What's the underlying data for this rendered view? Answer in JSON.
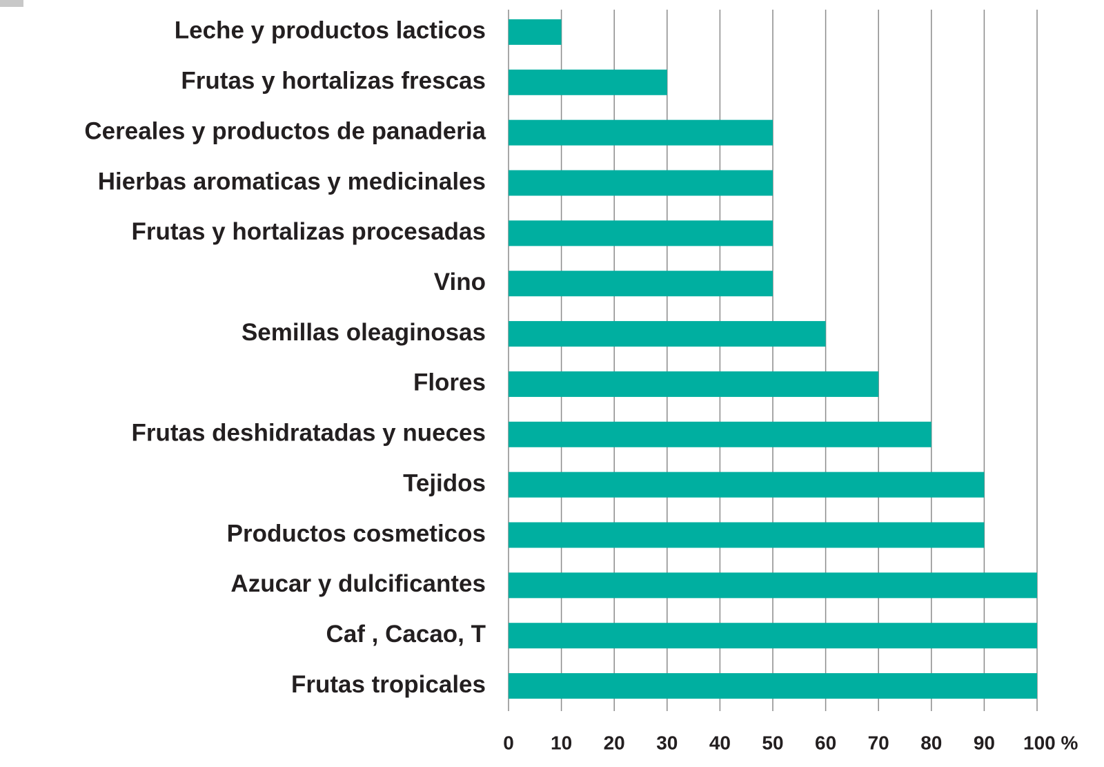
{
  "chart_data": {
    "type": "hbar",
    "categories": [
      "Leche y productos lacticos",
      "Frutas y hortalizas frescas",
      "Cereales y productos de panaderia",
      "Hierbas aromaticas y medicinales",
      "Frutas y hortalizas procesadas",
      "Vino",
      "Semillas oleaginosas",
      "Flores",
      "Frutas deshidratadas y nueces",
      "Tejidos",
      "Productos cosmeticos",
      "Azucar y dulcificantes",
      "Caf , Cacao, T",
      "Frutas tropicales"
    ],
    "values": [
      10,
      30,
      50,
      50,
      50,
      50,
      60,
      70,
      80,
      90,
      90,
      100,
      100,
      100
    ],
    "color": "#00afa0",
    "xlim": [
      0,
      100
    ],
    "xticks": [
      0,
      10,
      20,
      30,
      40,
      50,
      60,
      70,
      80,
      90,
      {
        "value": 100,
        "label": "100 %"
      }
    ],
    "grid": true
  }
}
